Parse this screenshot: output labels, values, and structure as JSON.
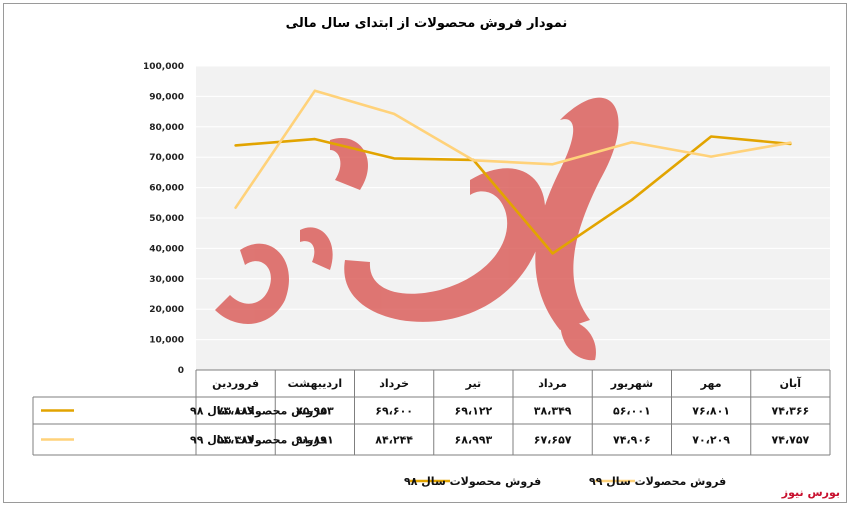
{
  "chart_data": {
    "type": "line",
    "title": "نمودار فروش محصولات از ابتدای سال مالی",
    "categories": [
      "آبان",
      "مهر",
      "شهریور",
      "مرداد",
      "تیر",
      "خرداد",
      "اردیبهشت",
      "فروردین"
    ],
    "y_ticks": [
      "100,000",
      "90,000",
      "80,000",
      "70,000",
      "60,000",
      "50,000",
      "40,000",
      "30,000",
      "20,000",
      "10,000",
      "0"
    ],
    "ylim": [
      0,
      100000
    ],
    "grid": true,
    "legend_position": "bottom",
    "series": [
      {
        "name": "فروش محصولات سال ۹۸",
        "color": "#e2a400",
        "values": [
          74366,
          76801,
          56001,
          38349,
          69122,
          69600,
          75953,
          73889
        ],
        "labels": [
          "۷۴،۳۶۶",
          "۷۶،۸۰۱",
          "۵۶،۰۰۱",
          "۳۸،۳۴۹",
          "۶۹،۱۲۲",
          "۶۹،۶۰۰",
          "۷۵،۹۵۳",
          "۷۳،۸۸۹"
        ]
      },
      {
        "name": "فروش محصولات سال ۹۹",
        "color": "#ffd27a",
        "values": [
          74757,
          70209,
          74906,
          67657,
          68993,
          84244,
          91891,
          53381
        ],
        "labels": [
          "۷۴،۷۵۷",
          "۷۰،۲۰۹",
          "۷۴،۹۰۶",
          "۶۷،۶۵۷",
          "۶۸،۹۹۳",
          "۸۴،۲۴۴",
          "۹۱،۸۹۱",
          "۵۳،۳۸۱"
        ]
      }
    ]
  },
  "watermark_text": "بورس نیوز",
  "logo_text": "بورس نیوز",
  "colors": {
    "plot_background": "#f2f2f2",
    "grid": "#ffffff",
    "logo_red": "#d9534f"
  }
}
